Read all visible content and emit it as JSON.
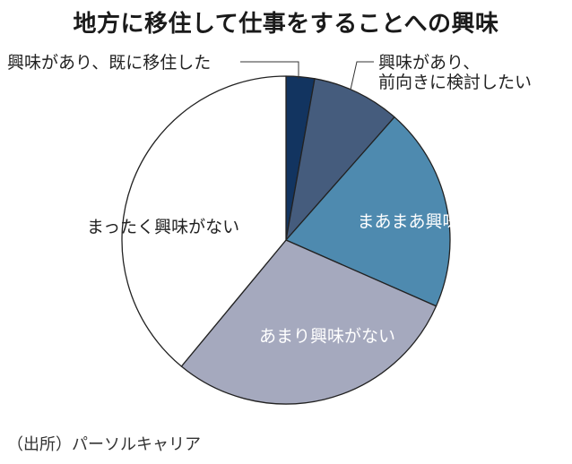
{
  "chart_data": {
    "type": "pie",
    "title": "地方に移住して仕事をすることへの興味",
    "start_angle_deg": 0,
    "direction": "clockwise",
    "slices": [
      {
        "label": "興味があり、既に移住した",
        "value": 2.8,
        "color": "#123460",
        "label_mode": "leader"
      },
      {
        "label": "興味があり、前向きに検討したい",
        "label_lines": [
          "興味があり、",
          "前向きに検討したい"
        ],
        "value": 8.7,
        "color": "#455C7D",
        "label_mode": "leader"
      },
      {
        "label": "まあまあ興味がある",
        "value": 20.1,
        "color": "#4E8AAF",
        "label_mode": "inside",
        "label_color": "#ffffff"
      },
      {
        "label": "あまり興味がない",
        "value": 29.4,
        "color": "#A5A9BE",
        "label_mode": "inside",
        "label_color": "#ffffff"
      },
      {
        "label": "まったく興味がない",
        "value": 39.0,
        "color": "#FFFFFF",
        "label_mode": "inside",
        "label_color": "#222222"
      }
    ],
    "source": "（出所）パーソルキャリア"
  }
}
